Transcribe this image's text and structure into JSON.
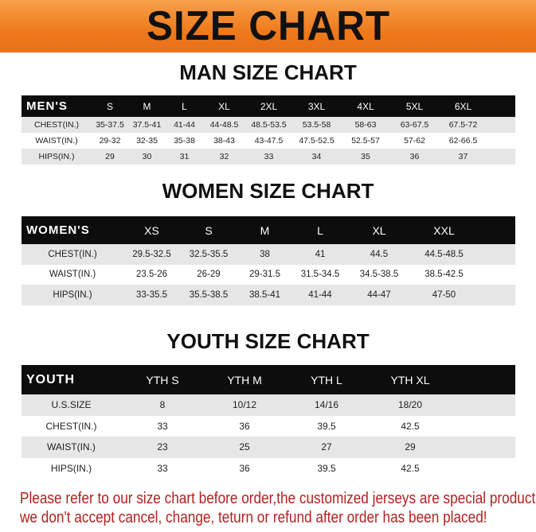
{
  "title": "SIZE CHART",
  "colors": {
    "banner": "#ee7a1c",
    "header_row": "#0d0d0d",
    "stripe": "#e6e6e6",
    "note": "#b3201f"
  },
  "men": {
    "title": "MAN SIZE CHART",
    "label": "MEN'S",
    "sizes": [
      "S",
      "M",
      "L",
      "XL",
      "2XL",
      "3XL",
      "4XL",
      "5XL",
      "6XL"
    ],
    "rows": [
      {
        "label": "CHEST(IN.)",
        "values": [
          "35-37.5",
          "37.5-41",
          "41-44",
          "44-48.5",
          "48.5-53.5",
          "53.5-58",
          "58-63",
          "63-67.5",
          "67.5-72"
        ]
      },
      {
        "label": "WAIST(IN.)",
        "values": [
          "29-32",
          "32-35",
          "35-38",
          "38-43",
          "43-47.5",
          "47.5-52.5",
          "52.5-57",
          "57-62",
          "62-66.5"
        ]
      },
      {
        "label": "HIPS(IN.)",
        "values": [
          "29",
          "30",
          "31",
          "32",
          "33",
          "34",
          "35",
          "36",
          "37"
        ]
      }
    ]
  },
  "women": {
    "title": "WOMEN SIZE CHART",
    "label": "WOMEN'S",
    "sizes": [
      "XS",
      "S",
      "M",
      "L",
      "XL",
      "XXL"
    ],
    "rows": [
      {
        "label": "CHEST(IN.)",
        "values": [
          "29.5-32.5",
          "32.5-35.5",
          "38",
          "41",
          "44.5",
          "44.5-48.5"
        ]
      },
      {
        "label": "WAIST(IN.)",
        "values": [
          "23.5-26",
          "26-29",
          "29-31.5",
          "31.5-34.5",
          "34.5-38.5",
          "38.5-42.5"
        ]
      },
      {
        "label": "HIPS(IN.)",
        "values": [
          "33-35.5",
          "35.5-38.5",
          "38.5-41",
          "41-44",
          "44-47",
          "47-50"
        ]
      }
    ]
  },
  "youth": {
    "title": "YOUTH SIZE CHART",
    "label": "YOUTH",
    "sizes": [
      "YTH S",
      "YTH M",
      "YTH L",
      "YTH XL"
    ],
    "rows": [
      {
        "label": "U.S.SIZE",
        "values": [
          "8",
          "10/12",
          "14/16",
          "18/20"
        ]
      },
      {
        "label": "CHEST(IN.)",
        "values": [
          "33",
          "36",
          "39.5",
          "42.5"
        ]
      },
      {
        "label": "WAIST(IN.)",
        "values": [
          "23",
          "25",
          "27",
          "29"
        ]
      },
      {
        "label": "HIPS(IN.)",
        "values": [
          "33",
          "36",
          "39.5",
          "42.5"
        ]
      }
    ]
  },
  "note": {
    "line1": "Please refer to our size chart before order,the customized jerseys are special products,",
    "line2": "we don't accept cancel, change, teturn or refund after order has been placed!"
  }
}
